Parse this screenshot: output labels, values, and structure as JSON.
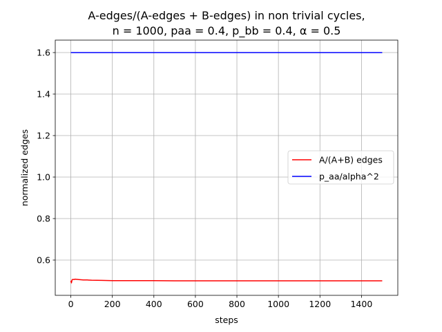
{
  "chart_data": {
    "type": "line",
    "title": "A-edges/(A-edges + B-edges) in non trivial cycles,",
    "subtitle": "n = 1000, paa = 0.4, p_bb = 0.4, α = 0.5",
    "xlabel": "steps",
    "ylabel": "normalized edges",
    "xlim": [
      -75,
      1575
    ],
    "ylim": [
      0.43,
      1.66
    ],
    "xticks": [
      0,
      200,
      400,
      600,
      800,
      1000,
      1200,
      1400
    ],
    "xtick_labels": [
      "0",
      "200",
      "400",
      "600",
      "800",
      "1000",
      "1200",
      "1400"
    ],
    "yticks": [
      0.6,
      0.8,
      1.0,
      1.2,
      1.4,
      1.6
    ],
    "ytick_labels": [
      "0.6",
      "0.8",
      "1.0",
      "1.2",
      "1.4",
      "1.6"
    ],
    "grid": true,
    "legend_position": "center-right",
    "series": [
      {
        "name": "A/(A+B) edges",
        "color": "#ff0000",
        "x": [
          0,
          3,
          6,
          10,
          15,
          20,
          30,
          40,
          50,
          60,
          80,
          100,
          150,
          200,
          250,
          300,
          400,
          500,
          600,
          800,
          1000,
          1200,
          1400,
          1500
        ],
        "y": [
          0.5,
          0.49,
          0.505,
          0.507,
          0.506,
          0.508,
          0.507,
          0.506,
          0.505,
          0.504,
          0.504,
          0.503,
          0.502,
          0.501,
          0.501,
          0.501,
          0.501,
          0.5,
          0.5,
          0.5,
          0.5,
          0.5,
          0.5,
          0.5
        ]
      },
      {
        "name": "p_aa/alpha^2",
        "color": "#0000ff",
        "x": [
          0,
          1500
        ],
        "y": [
          1.6,
          1.6
        ]
      }
    ]
  }
}
